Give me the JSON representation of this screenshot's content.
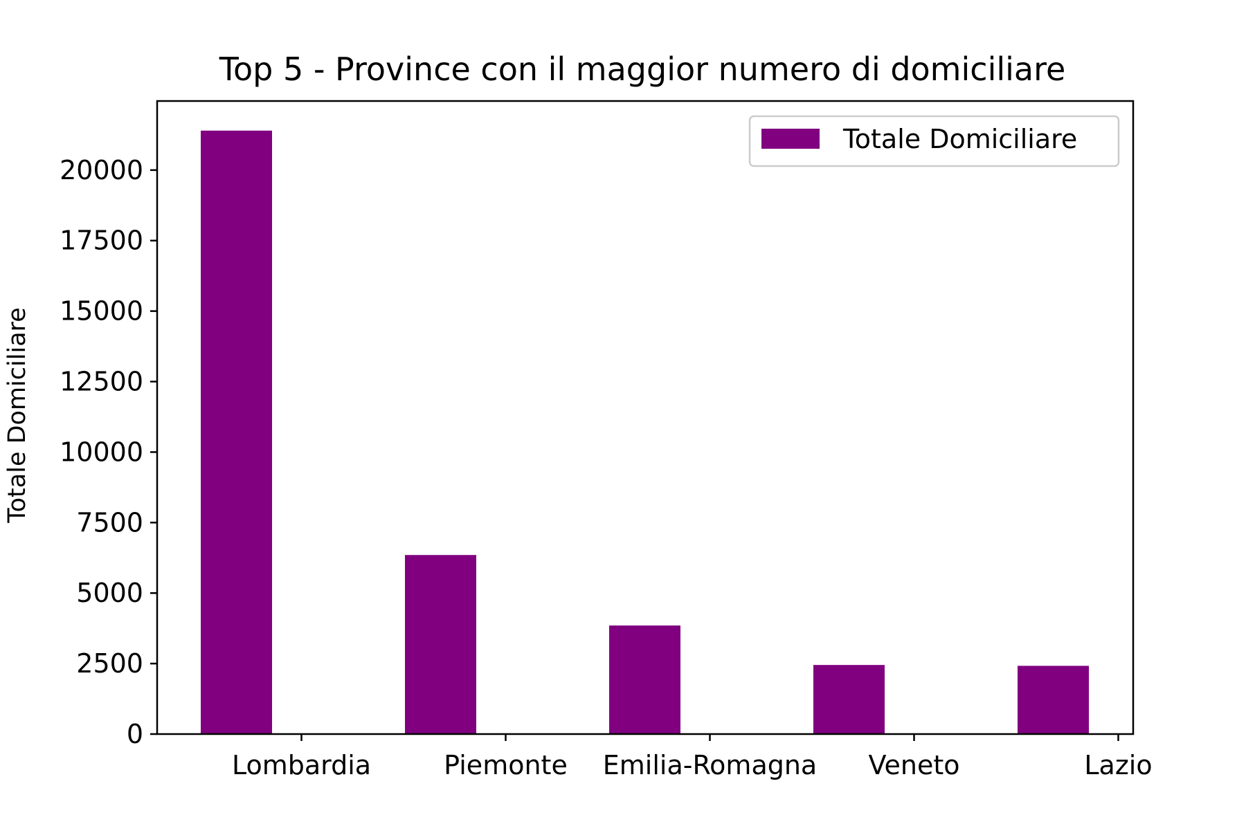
{
  "chart_data": {
    "type": "bar",
    "title": "Top 5 - Province con il maggior numero di domiciliare",
    "xlabel": "",
    "ylabel": "Totale Domiciliare",
    "categories": [
      "Lombardia",
      "Piemonte",
      "Emilia-Romagna",
      "Veneto",
      "Lazio"
    ],
    "series": [
      {
        "name": "Totale Domiciliare",
        "values": [
          21400,
          6350,
          3850,
          2450,
          2420
        ],
        "color": "#800080"
      }
    ],
    "ylim": [
      0,
      22450
    ],
    "yticks": [
      0,
      2500,
      5000,
      7500,
      10000,
      12500,
      15000,
      17500,
      20000
    ],
    "grid": false,
    "legend_position": "top-right"
  }
}
